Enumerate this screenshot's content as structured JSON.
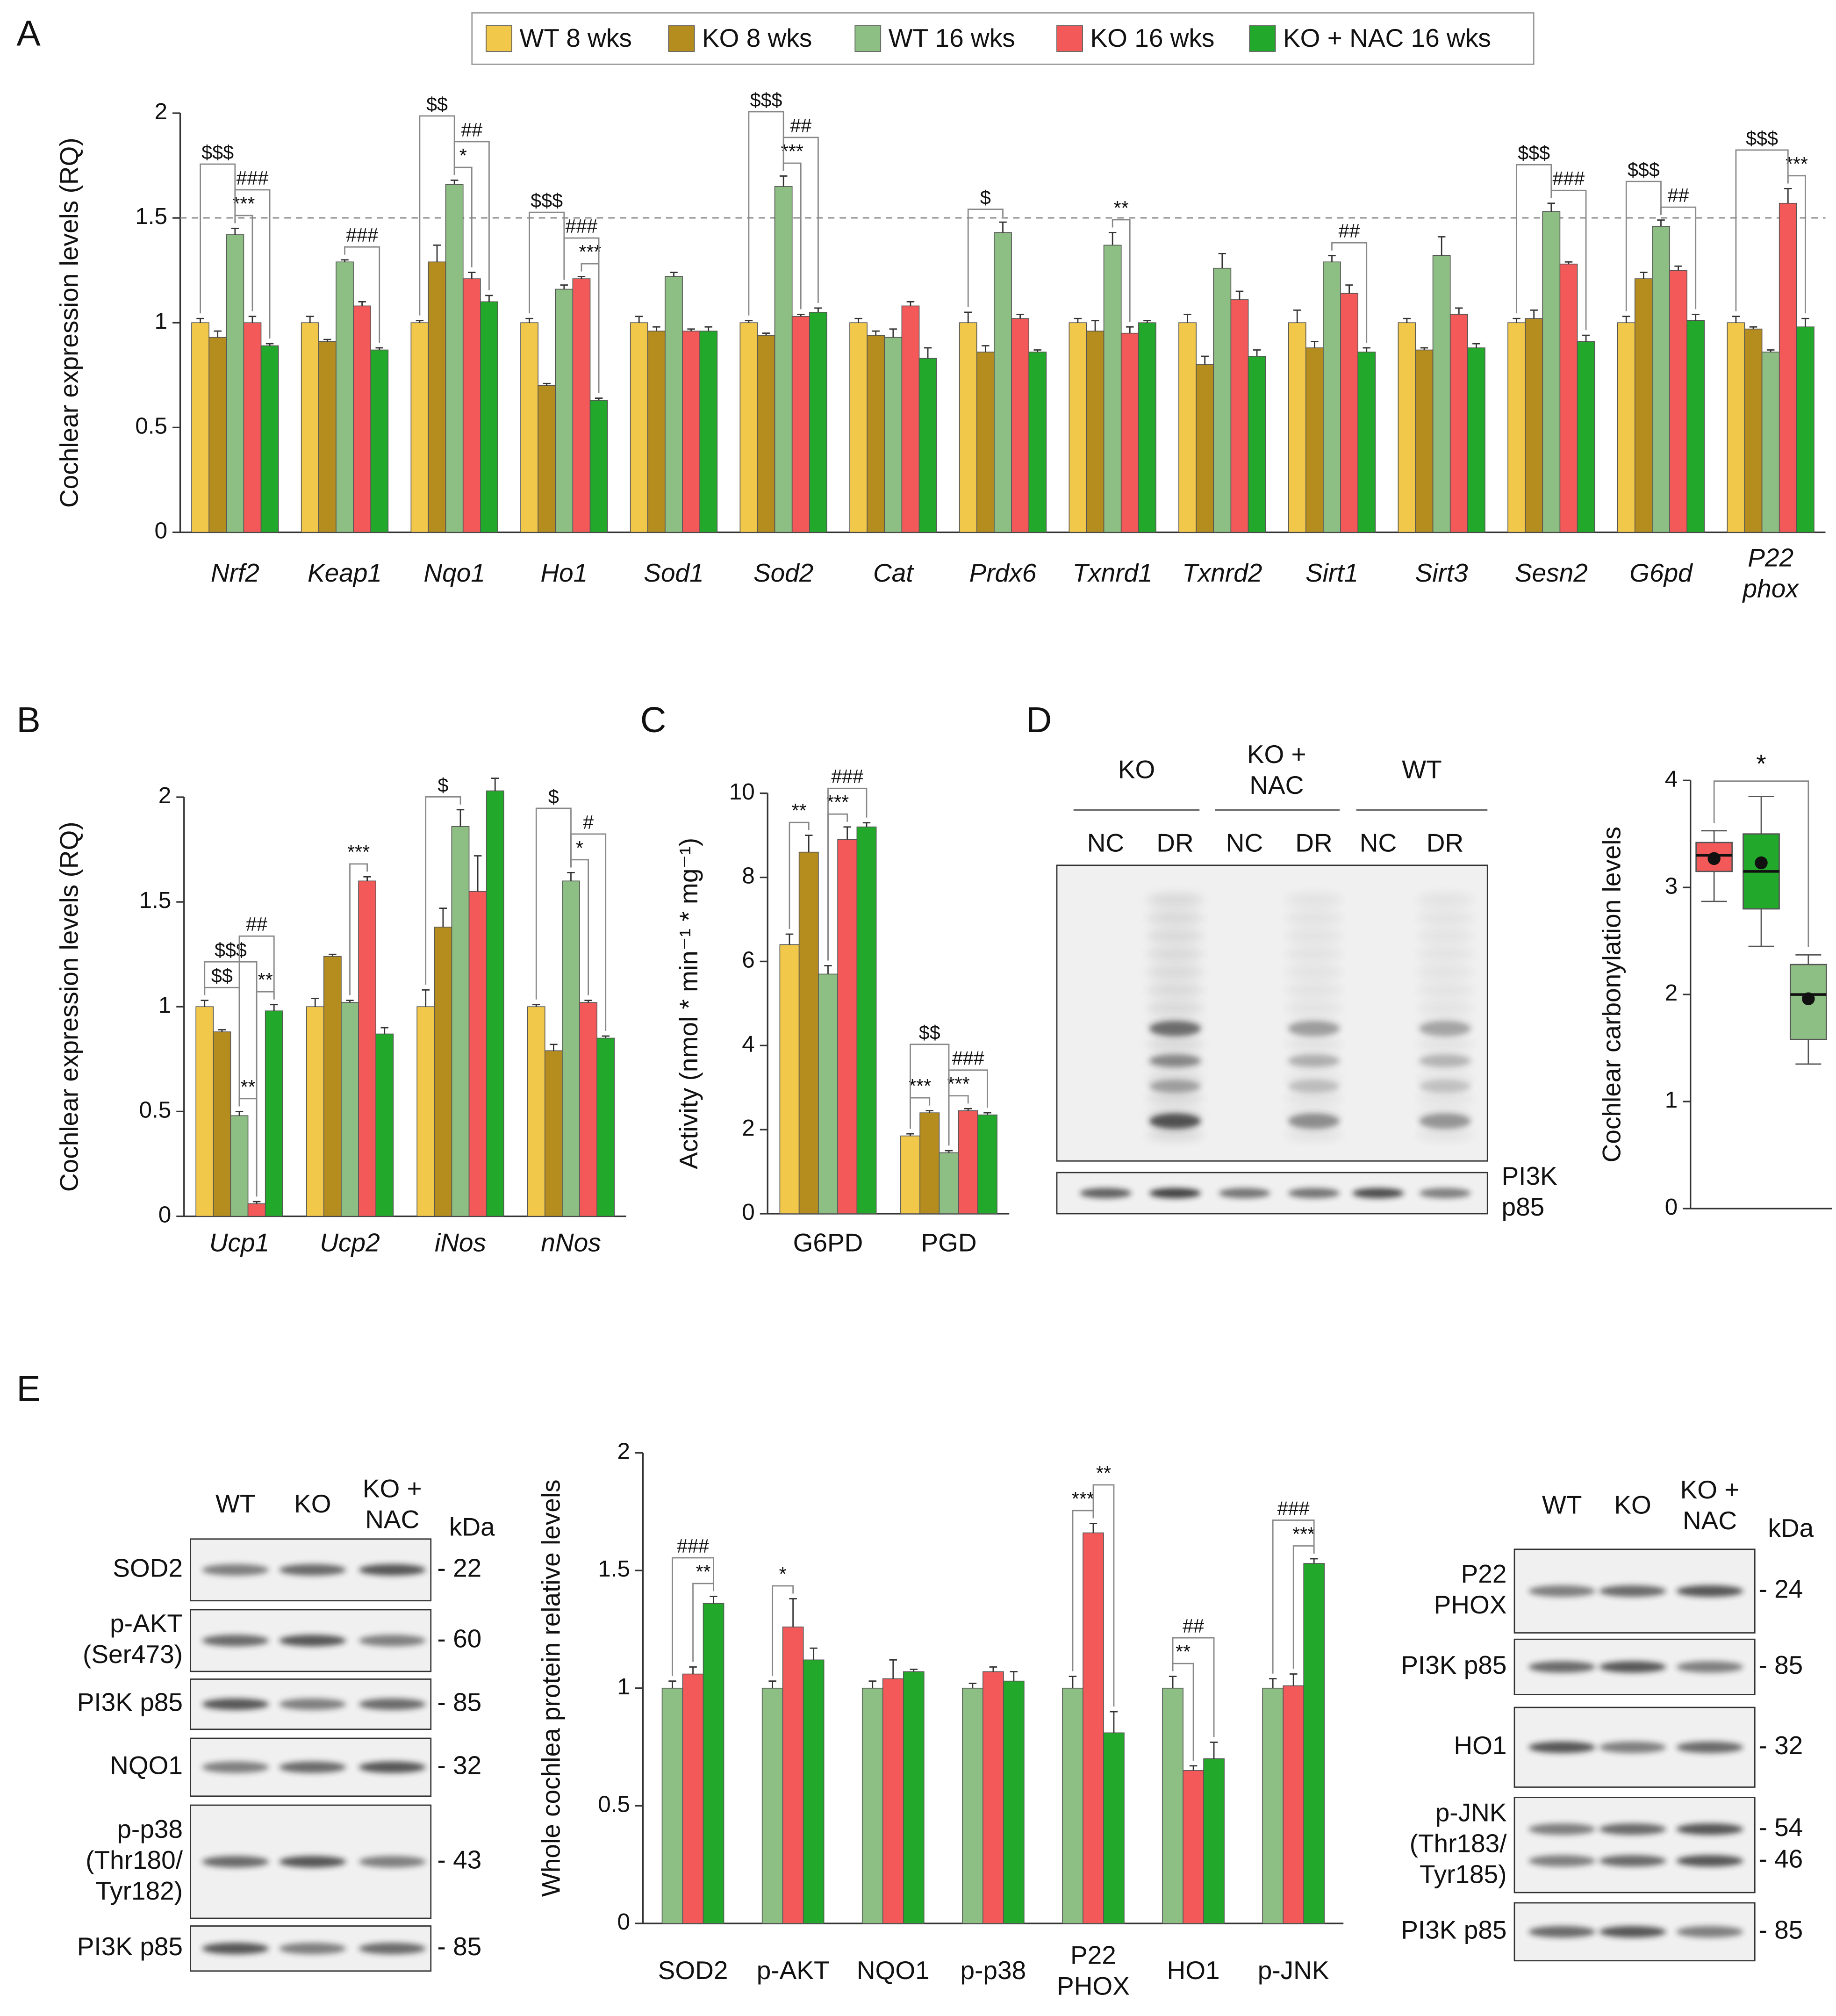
{
  "panel_labels": [
    "A",
    "B",
    "C",
    "D",
    "E"
  ],
  "chart_data": [
    {
      "type": "bar",
      "ylabel": "Cochlear expression levels (RQ)",
      "italic": true,
      "legend": "top",
      "categories": [
        "Nrf2",
        "Keap1",
        "Nqo1",
        "Ho1",
        "Sod1",
        "Sod2",
        "Cat",
        "Prdx6",
        "Txnrd1",
        "Txnrd2",
        "Sirt1",
        "Sirt3",
        "Sesn2",
        "G6pd",
        "P22\nphox"
      ],
      "ylim": [
        0,
        2
      ],
      "yticks": [
        0,
        0.5,
        1,
        1.5,
        2
      ],
      "hline": 1.5,
      "series": [
        {
          "name": "WT 8 wks",
          "color": "#f2c84b",
          "values": [
            1,
            1,
            1,
            1,
            1,
            1,
            1,
            1,
            1,
            1,
            1,
            1,
            1,
            1,
            1
          ],
          "errors": [
            0.02,
            0.03,
            0.01,
            0.02,
            0.03,
            0.01,
            0.02,
            0.05,
            0.02,
            0.04,
            0.06,
            0.02,
            0.02,
            0.03,
            0.03
          ]
        },
        {
          "name": "KO 8 wks",
          "color": "#b58d1f",
          "values": [
            0.93,
            0.91,
            1.29,
            0.7,
            0.96,
            0.94,
            0.94,
            0.86,
            0.96,
            0.8,
            0.88,
            0.87,
            1.02,
            1.21,
            0.97
          ],
          "errors": [
            0.03,
            0.01,
            0.08,
            0.01,
            0.02,
            0.01,
            0.02,
            0.03,
            0.05,
            0.04,
            0.03,
            0.01,
            0.04,
            0.03,
            0.01
          ]
        },
        {
          "name": "WT 16 wks",
          "color": "#8dbe83",
          "values": [
            1.42,
            1.29,
            1.66,
            1.16,
            1.22,
            1.65,
            0.93,
            1.43,
            1.37,
            1.26,
            1.29,
            1.32,
            1.53,
            1.46,
            0.86
          ],
          "errors": [
            0.03,
            0.01,
            0.02,
            0.02,
            0.02,
            0.05,
            0.04,
            0.05,
            0.06,
            0.07,
            0.03,
            0.09,
            0.04,
            0.03,
            0.01
          ]
        },
        {
          "name": "KO 16 wks",
          "color": "#f4595a",
          "values": [
            1.0,
            1.08,
            1.21,
            1.21,
            0.96,
            1.03,
            1.08,
            1.02,
            0.95,
            1.11,
            1.14,
            1.04,
            1.28,
            1.25,
            1.57
          ],
          "errors": [
            0.03,
            0.02,
            0.03,
            0.01,
            0.01,
            0.01,
            0.02,
            0.02,
            0.03,
            0.04,
            0.04,
            0.03,
            0.01,
            0.02,
            0.07
          ]
        },
        {
          "name": "KO + NAC 16 wks",
          "color": "#22a82a",
          "values": [
            0.89,
            0.87,
            1.1,
            0.63,
            0.96,
            1.05,
            0.83,
            0.86,
            1.0,
            0.84,
            0.86,
            0.88,
            0.91,
            1.01,
            0.98
          ],
          "errors": [
            0.01,
            0.01,
            0.03,
            0.01,
            0.02,
            0.02,
            0.05,
            0.01,
            0.01,
            0.03,
            0.02,
            0.02,
            0.03,
            0.03,
            0.04
          ]
        }
      ],
      "annotations": [
        {
          "text": "***",
          "category": 0,
          "from": 2,
          "to": 3
        },
        {
          "text": "###",
          "category": 0,
          "from": 2,
          "to": 4
        },
        {
          "text": "$$$",
          "category": 0,
          "from": 0,
          "to": 2
        },
        {
          "text": "###",
          "category": 1,
          "from": 2,
          "to": 4
        },
        {
          "text": "*",
          "category": 2,
          "from": 2,
          "to": 3
        },
        {
          "text": "##",
          "category": 2,
          "from": 2,
          "to": 4
        },
        {
          "text": "$$",
          "category": 2,
          "from": 0,
          "to": 2
        },
        {
          "text": "***",
          "category": 3,
          "from": 3,
          "to": 4
        },
        {
          "text": "###",
          "category": 3,
          "from": 2,
          "to": 4
        },
        {
          "text": "$$$",
          "category": 3,
          "from": 0,
          "to": 2
        },
        {
          "text": "***",
          "category": 5,
          "from": 2,
          "to": 3
        },
        {
          "text": "##",
          "category": 5,
          "from": 2,
          "to": 4
        },
        {
          "text": "$$$",
          "category": 5,
          "from": 0,
          "to": 2
        },
        {
          "text": "$",
          "category": 7,
          "from": 0,
          "to": 2
        },
        {
          "text": "**",
          "category": 8,
          "from": 2,
          "to": 3
        },
        {
          "text": "##",
          "category": 10,
          "from": 2,
          "to": 4
        },
        {
          "text": "###",
          "category": 12,
          "from": 2,
          "to": 4
        },
        {
          "text": "$$$",
          "category": 12,
          "from": 0,
          "to": 2
        },
        {
          "text": "##",
          "category": 13,
          "from": 2,
          "to": 4
        },
        {
          "text": "$$$",
          "category": 13,
          "from": 0,
          "to": 2
        },
        {
          "text": "***",
          "category": 14,
          "from": 3,
          "to": 4
        },
        {
          "text": "$$$",
          "category": 14,
          "from": 0,
          "to": 3
        }
      ]
    },
    {
      "type": "bar",
      "ylabel": "Cochlear expression levels (RQ)",
      "italic": true,
      "categories": [
        "Ucp1",
        "Ucp2",
        "iNos",
        "nNos"
      ],
      "ylim": [
        0,
        2
      ],
      "yticks": [
        0,
        0.5,
        1,
        1.5,
        2
      ],
      "series": [
        {
          "color": "#f2c84b",
          "values": [
            1,
            1,
            1,
            1
          ],
          "errors": [
            0.03,
            0.04,
            0.08,
            0.01
          ]
        },
        {
          "color": "#b58d1f",
          "values": [
            0.88,
            1.24,
            1.38,
            0.79
          ],
          "errors": [
            0.01,
            0.01,
            0.09,
            0.03
          ]
        },
        {
          "color": "#8dbe83",
          "values": [
            0.48,
            1.02,
            1.86,
            1.6
          ],
          "errors": [
            0.02,
            0.01,
            0.08,
            0.04
          ]
        },
        {
          "color": "#f4595a",
          "values": [
            0.06,
            1.6,
            1.55,
            1.02
          ],
          "errors": [
            0.01,
            0.02,
            0.17,
            0.01
          ]
        },
        {
          "color": "#22a82a",
          "values": [
            0.98,
            0.87,
            2.03,
            0.85
          ],
          "errors": [
            0.03,
            0.03,
            0.06,
            0.01
          ]
        }
      ],
      "annotations": [
        {
          "text": "**",
          "category": 0,
          "from": 2,
          "to": 3
        },
        {
          "text": "**",
          "category": 0,
          "from": 3,
          "to": 4
        },
        {
          "text": "$$",
          "category": 0,
          "from": 0,
          "to": 2
        },
        {
          "text": "$$$",
          "category": 0,
          "from": 0,
          "to": 3
        },
        {
          "text": "##",
          "category": 0,
          "from": 2,
          "to": 4
        },
        {
          "text": "***",
          "category": 1,
          "from": 2,
          "to": 3
        },
        {
          "text": "$",
          "category": 2,
          "from": 0,
          "to": 2
        },
        {
          "text": "*",
          "category": 3,
          "from": 2,
          "to": 3
        },
        {
          "text": "#",
          "category": 3,
          "from": 2,
          "to": 4
        },
        {
          "text": "$",
          "category": 3,
          "from": 0,
          "to": 2
        }
      ]
    },
    {
      "type": "bar",
      "ylabel": "Activity (nmol * min⁻¹ * mg⁻¹)",
      "italic": false,
      "categories": [
        "G6PD",
        "PGD"
      ],
      "ylim": [
        0,
        10
      ],
      "yticks": [
        0,
        2,
        4,
        6,
        8,
        10
      ],
      "series": [
        {
          "color": "#f2c84b",
          "values": [
            6.4,
            1.85
          ],
          "errors": [
            0.25,
            0.05
          ]
        },
        {
          "color": "#b58d1f",
          "values": [
            8.6,
            2.4
          ],
          "errors": [
            0.4,
            0.05
          ]
        },
        {
          "color": "#8dbe83",
          "values": [
            5.7,
            1.45
          ],
          "errors": [
            0.2,
            0.05
          ]
        },
        {
          "color": "#f4595a",
          "values": [
            8.9,
            2.45
          ],
          "errors": [
            0.3,
            0.05
          ]
        },
        {
          "color": "#22a82a",
          "values": [
            9.2,
            2.35
          ],
          "errors": [
            0.1,
            0.05
          ]
        }
      ],
      "annotations": [
        {
          "text": "**",
          "category": 0,
          "from": 0,
          "to": 1
        },
        {
          "text": "***",
          "category": 0,
          "from": 2,
          "to": 3
        },
        {
          "text": "###",
          "category": 0,
          "from": 2,
          "to": 4
        },
        {
          "text": "***",
          "category": 1,
          "from": 0,
          "to": 1
        },
        {
          "text": "***",
          "category": 1,
          "from": 2,
          "to": 3
        },
        {
          "text": "###",
          "category": 1,
          "from": 2,
          "to": 4
        },
        {
          "text": "$$",
          "category": 1,
          "from": 0,
          "to": 2
        }
      ]
    },
    {
      "type": "box",
      "ylabel": "Cochlear carbonylation levels",
      "ylim": [
        0,
        4
      ],
      "yticks": [
        0,
        1,
        2,
        3,
        4
      ],
      "boxes": [
        {
          "color": "#f4595a",
          "min": 2.87,
          "q1": 3.15,
          "median": 3.3,
          "q3": 3.42,
          "max": 3.53,
          "mean": 3.27
        },
        {
          "color": "#22a82a",
          "min": 2.45,
          "q1": 2.8,
          "median": 3.15,
          "q3": 3.5,
          "max": 3.85,
          "mean": 3.23
        },
        {
          "color": "#8dbe83",
          "min": 1.35,
          "q1": 1.58,
          "median": 2.0,
          "q3": 2.28,
          "max": 2.37,
          "mean": 1.96
        }
      ],
      "annotations": [
        {
          "text": "*",
          "from": 0,
          "to": 2
        }
      ]
    },
    {
      "type": "bar",
      "ylabel": "Whole cochlea protein relative levels",
      "italic": false,
      "categories": [
        "SOD2",
        "p-AKT",
        "NQO1",
        "p-p38",
        "P22\nPHOX",
        "HO1",
        "p-JNK"
      ],
      "ylim": [
        0,
        2
      ],
      "yticks": [
        0,
        0.5,
        1,
        1.5,
        2
      ],
      "series": [
        {
          "color": "#8dbe83",
          "values": [
            1,
            1,
            1,
            1,
            1,
            1,
            1
          ],
          "errors": [
            0.03,
            0.03,
            0.03,
            0.02,
            0.05,
            0.05,
            0.04
          ]
        },
        {
          "color": "#f4595a",
          "values": [
            1.06,
            1.26,
            1.04,
            1.07,
            1.66,
            0.65,
            1.01
          ],
          "errors": [
            0.03,
            0.12,
            0.08,
            0.02,
            0.04,
            0.02,
            0.05
          ]
        },
        {
          "color": "#22a82a",
          "values": [
            1.36,
            1.12,
            1.07,
            1.03,
            0.81,
            0.7,
            1.53
          ],
          "errors": [
            0.03,
            0.05,
            0.01,
            0.04,
            0.09,
            0.07,
            0.02
          ]
        }
      ],
      "annotations": [
        {
          "text": "**",
          "category": 0,
          "from": 1,
          "to": 2
        },
        {
          "text": "###",
          "category": 0,
          "from": 0,
          "to": 2
        },
        {
          "text": "*",
          "category": 1,
          "from": 0,
          "to": 1
        },
        {
          "text": "***",
          "category": 4,
          "from": 0,
          "to": 1
        },
        {
          "text": "**",
          "category": 4,
          "from": 1,
          "to": 2
        },
        {
          "text": "**",
          "category": 5,
          "from": 0,
          "to": 1
        },
        {
          "text": "##",
          "category": 5,
          "from": 0,
          "to": 2
        },
        {
          "text": "***",
          "category": 6,
          "from": 1,
          "to": 2
        },
        {
          "text": "###",
          "category": 6,
          "from": 0,
          "to": 2
        }
      ]
    }
  ],
  "blots": {
    "D": {
      "groups": [
        "KO",
        "KO +\nNAC",
        "WT"
      ],
      "lanes": [
        "NC",
        "DR",
        "NC",
        "DR",
        "NC",
        "DR"
      ],
      "loading": "PI3K\np85"
    },
    "E_left": {
      "columns": [
        "WT",
        "KO",
        "KO +\nNAC"
      ],
      "unit": "kDa",
      "rows": [
        {
          "label": "SOD2",
          "kda": [
            "- 22"
          ]
        },
        {
          "label": "p-AKT\n(Ser473)",
          "kda": [
            "- 60"
          ]
        },
        {
          "label": "PI3K p85",
          "kda": [
            "- 85"
          ]
        },
        {
          "label": "NQO1",
          "kda": [
            "- 32"
          ]
        },
        {
          "label": "p-p38\n(Thr180/\nTyr182)",
          "kda": [
            "- 43"
          ]
        },
        {
          "label": "PI3K p85",
          "kda": [
            "- 85"
          ]
        }
      ]
    },
    "E_right": {
      "columns": [
        "WT",
        "KO",
        "KO +\nNAC"
      ],
      "unit": "kDa",
      "rows": [
        {
          "label": "P22\nPHOX",
          "kda": [
            "- 24"
          ]
        },
        {
          "label": "PI3K p85",
          "kda": [
            "- 85"
          ]
        },
        {
          "label": "HO1",
          "kda": [
            "- 32"
          ]
        },
        {
          "label": "p-JNK\n(Thr183/\nTyr185)",
          "kda": [
            "- 54",
            "- 46"
          ]
        },
        {
          "label": "PI3K p85",
          "kda": [
            "- 85"
          ]
        }
      ]
    }
  }
}
